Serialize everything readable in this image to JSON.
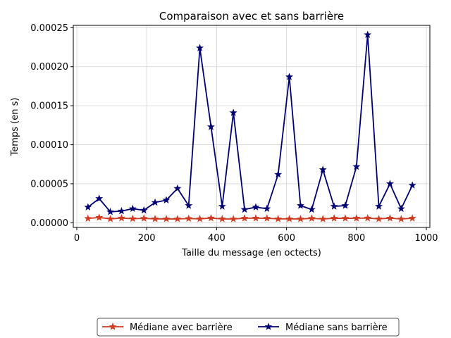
{
  "chart_data": {
    "type": "line",
    "title": "Comparaison avec et sans barrière",
    "xlabel": "Taille du message (en octects)",
    "ylabel": "Temps (en s)",
    "xlim": [
      -10,
      1010
    ],
    "ylim": [
      -6e-06,
      0.000253
    ],
    "xticks": [
      0,
      200,
      400,
      600,
      800,
      1000
    ],
    "yticks": [
      0,
      5e-05,
      0.0001,
      0.00015,
      0.0002,
      0.00025
    ],
    "xtick_labels": [
      "0",
      "200",
      "400",
      "600",
      "800",
      "1000"
    ],
    "ytick_labels": [
      "0.00000",
      "0.00005",
      "0.00010",
      "0.00015",
      "0.00020",
      "0.00025"
    ],
    "grid": true,
    "legend_position": "bottom-center",
    "x": [
      32,
      64,
      96,
      128,
      160,
      192,
      224,
      256,
      288,
      320,
      352,
      384,
      416,
      448,
      480,
      512,
      544,
      576,
      608,
      640,
      672,
      704,
      736,
      768,
      800,
      832,
      864,
      896,
      928,
      960
    ],
    "series": [
      {
        "name": "Médiane avec barrière",
        "color": "#d03b1f",
        "marker": "star",
        "values": [
          5.5e-06,
          6.8e-06,
          5e-06,
          6e-06,
          5.2e-06,
          5.6e-06,
          5e-06,
          4.9e-06,
          4.9e-06,
          5.4e-06,
          5e-06,
          6e-06,
          4.9e-06,
          4.8e-06,
          5.8e-06,
          5.9e-06,
          5.7e-06,
          5e-06,
          5e-06,
          4.9e-06,
          5.6e-06,
          4.8e-06,
          5.8e-06,
          5.7e-06,
          5.8e-06,
          6e-06,
          5e-06,
          5.9e-06,
          4.8e-06,
          5.8e-06
        ]
      },
      {
        "name": "Médiane sans barrière",
        "color": "#000075",
        "marker": "star",
        "values": [
          2e-05,
          3.1e-05,
          1.4e-05,
          1.5e-05,
          1.8e-05,
          1.6e-05,
          2.6e-05,
          2.9e-05,
          4.4e-05,
          2.2e-05,
          0.000224,
          0.000123,
          2.1e-05,
          0.000141,
          1.7e-05,
          2e-05,
          1.8e-05,
          6.2e-05,
          0.000187,
          2.2e-05,
          1.7e-05,
          6.8e-05,
          2.1e-05,
          2.2e-05,
          7.2e-05,
          0.000241,
          2.1e-05,
          5e-05,
          1.8e-05,
          4.8e-05
        ]
      }
    ]
  }
}
